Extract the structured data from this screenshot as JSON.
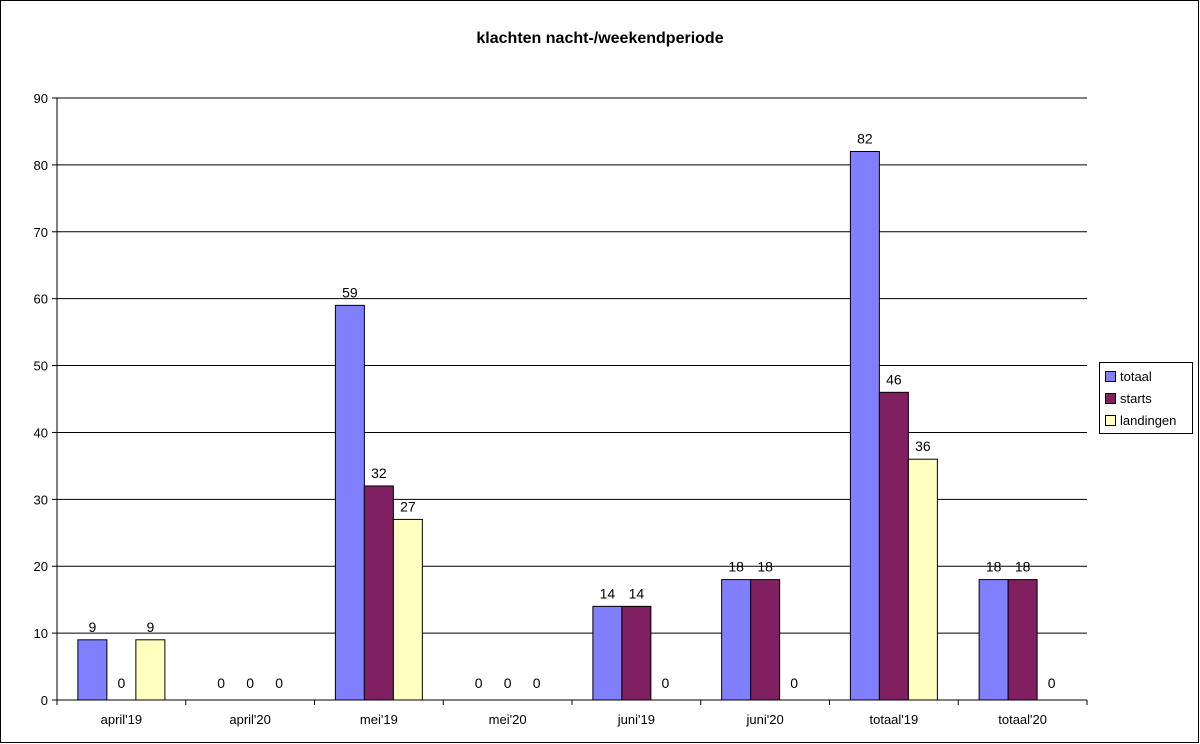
{
  "chart_data": {
    "type": "bar",
    "title": "klachten nacht-/weekendperiode",
    "categories": [
      "april'19",
      "april'20",
      "mei'19",
      "mei'20",
      "juni'19",
      "juni'20",
      "totaal'19",
      "totaal'20"
    ],
    "series": [
      {
        "name": "totaal",
        "color": "#8080ff",
        "values": [
          9,
          0,
          59,
          0,
          14,
          18,
          82,
          18
        ]
      },
      {
        "name": "starts",
        "color": "#802060",
        "values": [
          0,
          0,
          32,
          0,
          14,
          18,
          46,
          18
        ]
      },
      {
        "name": "landingen",
        "color": "#ffffc0",
        "values": [
          9,
          0,
          27,
          0,
          0,
          0,
          36,
          0
        ]
      }
    ],
    "ylim": [
      0,
      90
    ],
    "yticks": [
      0,
      10,
      20,
      30,
      40,
      50,
      60,
      70,
      80,
      90
    ],
    "grid": true,
    "legend_position": "right"
  }
}
